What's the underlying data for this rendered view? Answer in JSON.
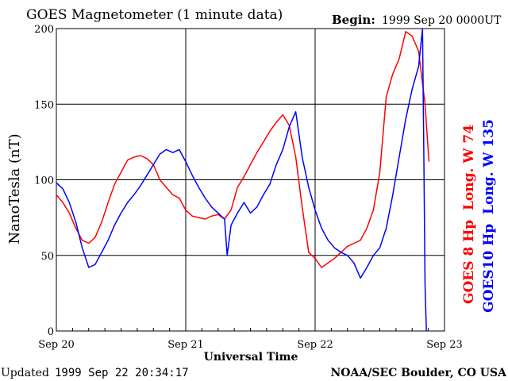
{
  "chart_data": {
    "type": "line",
    "title": "GOES Magnetometer (1 minute data)",
    "begin_label": "Begin:",
    "begin_value": "1999 Sep 20 0000UT",
    "xlabel": "Universal Time",
    "ylabel": "NanoTesla (nT)",
    "x_ticks": [
      "Sep 20",
      "Sep 21",
      "Sep 22",
      "Sep 23"
    ],
    "y_ticks": [
      "0",
      "50",
      "100",
      "150",
      "200"
    ],
    "xlim": [
      0,
      3
    ],
    "ylim": [
      0,
      200
    ],
    "grid": true,
    "legend_placement": "right, vertical",
    "updated_label": "Updated",
    "updated_value": "1999 Sep 22 20:34:17",
    "credit": "NOAA/SEC Boulder, CO USA",
    "colors": {
      "goes8": "#ff0000",
      "goes10": "#0000ff",
      "axes": "#000000"
    },
    "series": [
      {
        "name": "GOES 8 Hp  Long. W 74",
        "x_unit": "days since Sep 20 00UT",
        "x": [
          0,
          0.05,
          0.1,
          0.15,
          0.2,
          0.25,
          0.3,
          0.35,
          0.4,
          0.45,
          0.5,
          0.55,
          0.6,
          0.65,
          0.7,
          0.75,
          0.8,
          0.85,
          0.9,
          0.95,
          1.0,
          1.05,
          1.1,
          1.15,
          1.2,
          1.25,
          1.3,
          1.35,
          1.4,
          1.45,
          1.5,
          1.55,
          1.6,
          1.65,
          1.7,
          1.75,
          1.8,
          1.85,
          1.9,
          1.95,
          2.0,
          2.05,
          2.1,
          2.15,
          2.2,
          2.25,
          2.3,
          2.35,
          2.4,
          2.45,
          2.5,
          2.55,
          2.6,
          2.65,
          2.7,
          2.75,
          2.8,
          2.85,
          2.88
        ],
        "y": [
          90,
          85,
          78,
          68,
          60,
          58,
          62,
          72,
          85,
          97,
          105,
          113,
          115,
          116,
          114,
          110,
          100,
          95,
          90,
          88,
          80,
          76,
          75,
          74,
          76,
          77,
          74,
          80,
          95,
          102,
          110,
          118,
          125,
          132,
          138,
          143,
          136,
          115,
          82,
          52,
          48,
          42,
          45,
          48,
          52,
          56,
          58,
          60,
          68,
          80,
          105,
          155,
          170,
          180,
          198,
          195,
          185,
          150,
          112
        ]
      },
      {
        "name": "GOES10 Hp  Long. W 135",
        "x_unit": "days since Sep 20 00UT",
        "x": [
          0,
          0.05,
          0.1,
          0.15,
          0.2,
          0.25,
          0.3,
          0.35,
          0.4,
          0.45,
          0.5,
          0.55,
          0.6,
          0.65,
          0.7,
          0.75,
          0.8,
          0.85,
          0.9,
          0.95,
          1.0,
          1.05,
          1.1,
          1.15,
          1.2,
          1.25,
          1.3,
          1.32,
          1.35,
          1.4,
          1.45,
          1.5,
          1.55,
          1.6,
          1.65,
          1.7,
          1.75,
          1.8,
          1.85,
          1.9,
          1.95,
          2.0,
          2.05,
          2.1,
          2.15,
          2.2,
          2.25,
          2.3,
          2.35,
          2.4,
          2.45,
          2.5,
          2.55,
          2.6,
          2.65,
          2.7,
          2.75,
          2.8,
          2.83,
          2.84,
          2.85,
          2.86
        ],
        "y": [
          98,
          94,
          85,
          72,
          55,
          42,
          44,
          52,
          60,
          70,
          78,
          85,
          90,
          96,
          103,
          110,
          117,
          120,
          118,
          120,
          112,
          103,
          95,
          88,
          82,
          78,
          74,
          50,
          70,
          78,
          85,
          78,
          82,
          90,
          97,
          110,
          120,
          135,
          145,
          115,
          95,
          80,
          68,
          60,
          55,
          52,
          50,
          45,
          35,
          42,
          50,
          55,
          68,
          90,
          115,
          140,
          160,
          175,
          200,
          120,
          30,
          0
        ]
      }
    ]
  }
}
